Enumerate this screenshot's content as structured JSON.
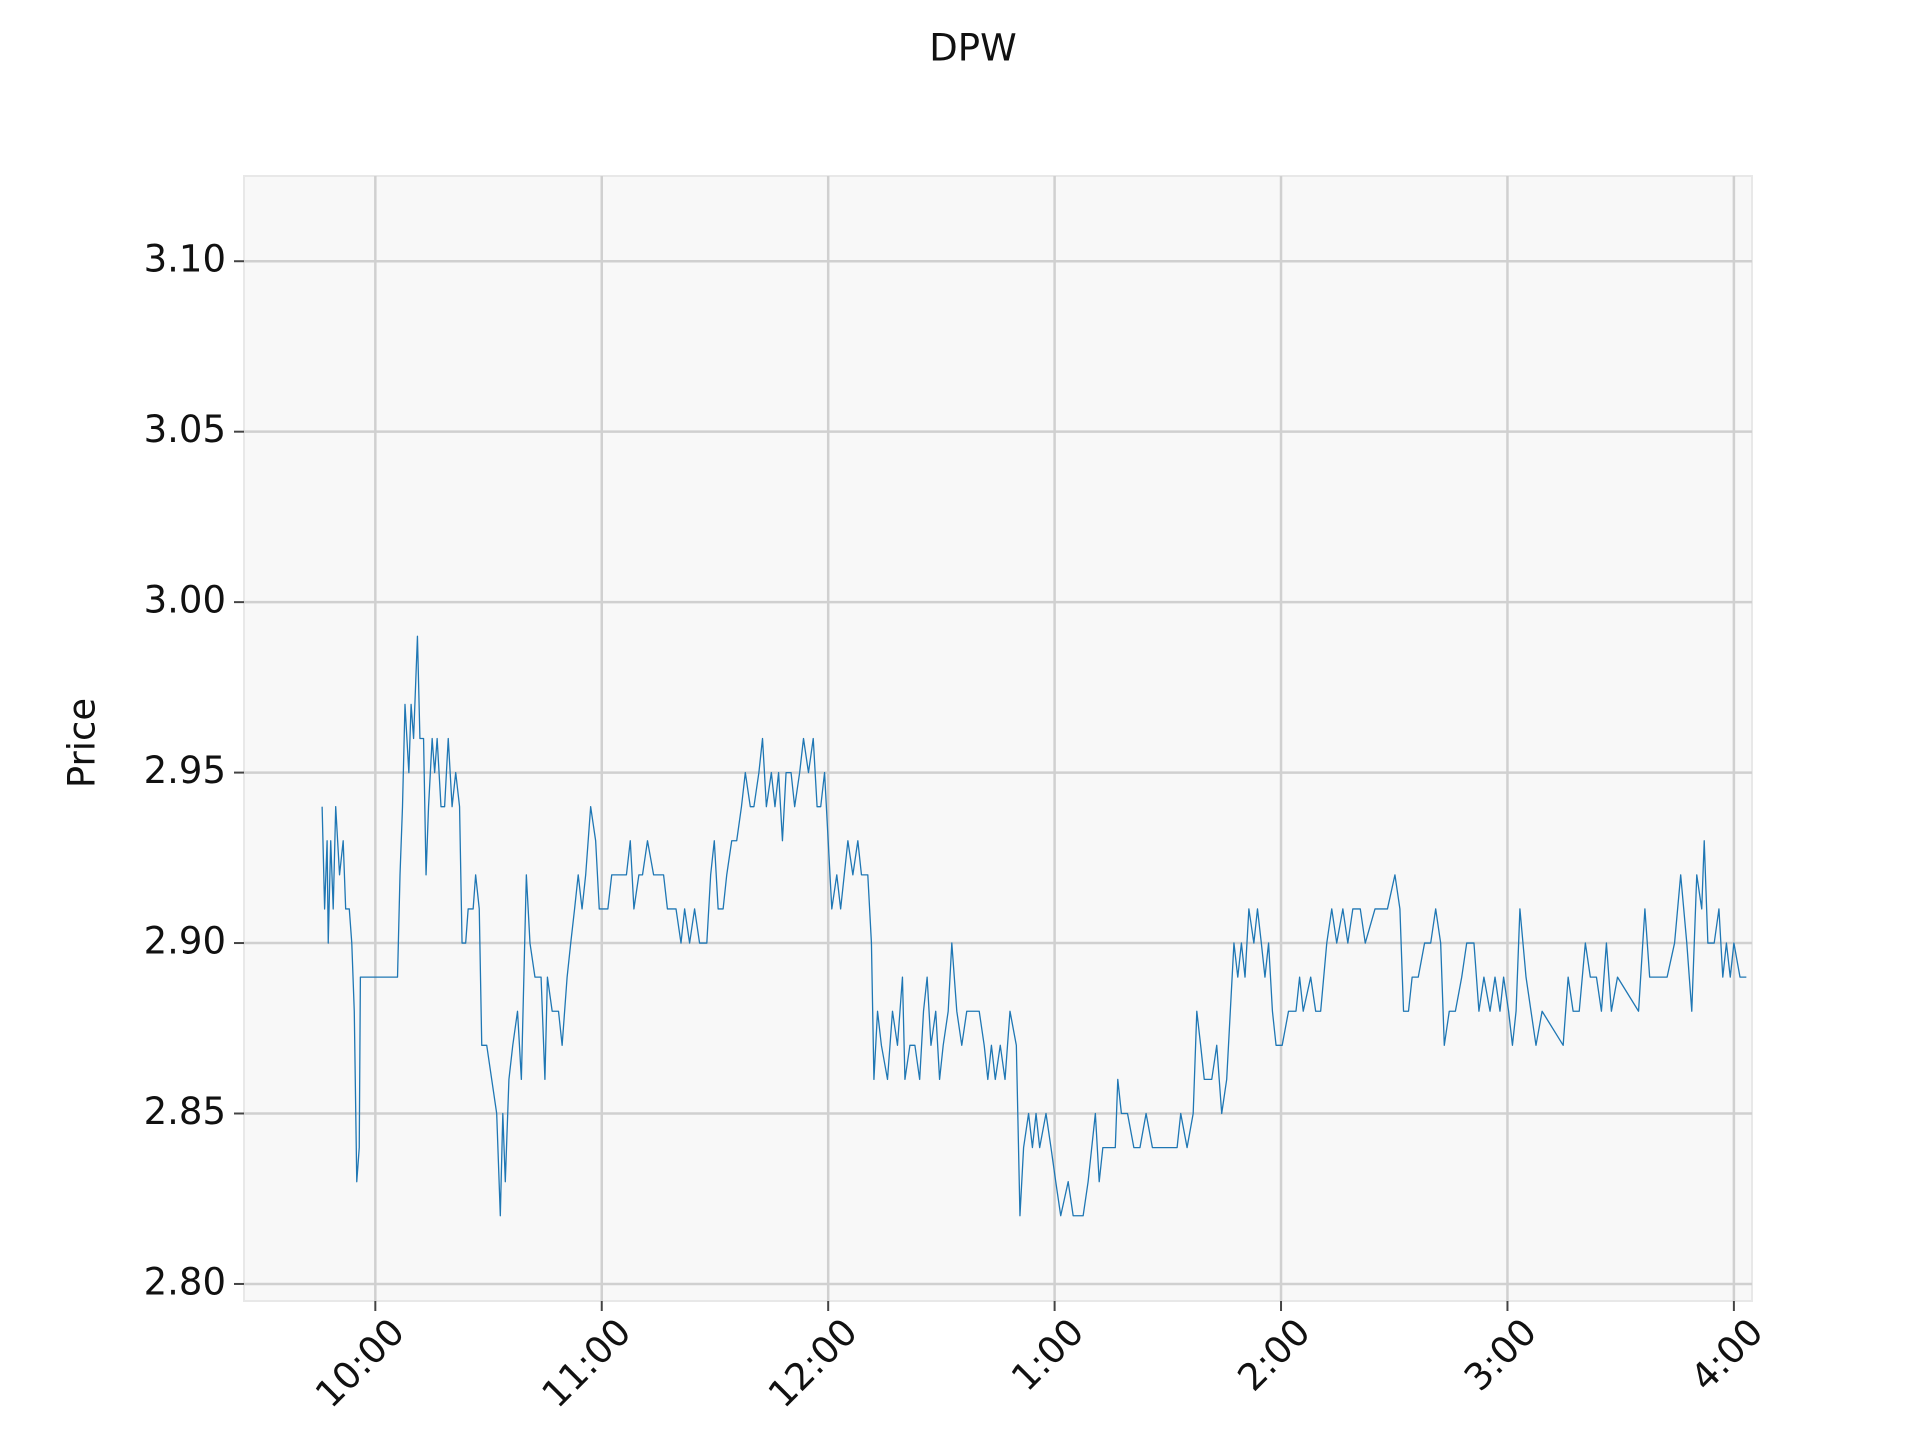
{
  "chart_data": {
    "type": "line",
    "title": "DPW",
    "y_label": "Price",
    "color": "#1f77b4",
    "grid": true,
    "xlim": [
      9.42,
      16.08
    ],
    "ylim": [
      2.795,
      3.125
    ],
    "xticks": [
      {
        "value": 10,
        "label": "10:00"
      },
      {
        "value": 11,
        "label": "11:00"
      },
      {
        "value": 12,
        "label": "12:00"
      },
      {
        "value": 13,
        "label": "1:00"
      },
      {
        "value": 14,
        "label": "2:00"
      },
      {
        "value": 15,
        "label": "3:00"
      },
      {
        "value": 16,
        "label": "4:00"
      }
    ],
    "yticks": [
      {
        "value": 2.8,
        "label": "2.80"
      },
      2.85,
      {
        "value": 2.9,
        "label": "2.90"
      },
      2.95,
      {
        "value": 3.0,
        "label": "3.00"
      },
      3.05,
      {
        "value": 3.1,
        "label": "3.10"
      }
    ],
    "x": [
      9.765,
      9.776,
      9.787,
      9.792,
      9.803,
      9.814,
      9.825,
      9.842,
      9.858,
      9.869,
      9.885,
      9.896,
      9.907,
      9.918,
      9.929,
      9.934,
      10.098,
      10.109,
      10.12,
      10.131,
      10.148,
      10.158,
      10.169,
      10.186,
      10.197,
      10.213,
      10.224,
      10.235,
      10.251,
      10.262,
      10.273,
      10.29,
      10.306,
      10.322,
      10.339,
      10.355,
      10.372,
      10.383,
      10.399,
      10.41,
      10.432,
      10.443,
      10.459,
      10.47,
      10.492,
      10.514,
      10.536,
      10.552,
      10.563,
      10.574,
      10.59,
      10.607,
      10.628,
      10.645,
      10.667,
      10.683,
      10.705,
      10.732,
      10.749,
      10.76,
      10.781,
      10.809,
      10.825,
      10.847,
      10.863,
      10.88,
      10.896,
      10.913,
      10.929,
      10.951,
      10.973,
      10.989,
      11.027,
      11.044,
      11.082,
      11.109,
      11.126,
      11.142,
      11.164,
      11.18,
      11.202,
      11.229,
      11.273,
      11.29,
      11.328,
      11.35,
      11.366,
      11.388,
      11.41,
      11.432,
      11.464,
      11.481,
      11.497,
      11.514,
      11.536,
      11.552,
      11.574,
      11.596,
      11.617,
      11.634,
      11.656,
      11.672,
      11.694,
      11.71,
      11.727,
      11.749,
      11.765,
      11.781,
      11.798,
      11.814,
      11.836,
      11.852,
      11.874,
      11.891,
      11.913,
      11.934,
      11.951,
      11.967,
      11.984,
      12.0,
      12.016,
      12.038,
      12.055,
      12.071,
      12.087,
      12.109,
      12.131,
      12.147,
      12.175,
      12.191,
      12.202,
      12.218,
      12.235,
      12.262,
      12.284,
      12.306,
      12.328,
      12.339,
      12.361,
      12.383,
      12.404,
      12.421,
      12.437,
      12.454,
      12.475,
      12.492,
      12.508,
      12.53,
      12.546,
      12.568,
      12.59,
      12.612,
      12.667,
      12.689,
      12.705,
      12.721,
      12.738,
      12.76,
      12.781,
      12.803,
      12.831,
      12.847,
      12.863,
      12.885,
      12.902,
      12.918,
      12.934,
      12.962,
      12.984,
      13.005,
      13.027,
      13.06,
      13.082,
      13.126,
      13.148,
      13.164,
      13.18,
      13.197,
      13.213,
      13.268,
      13.279,
      13.295,
      13.322,
      13.35,
      13.377,
      13.404,
      13.432,
      13.541,
      13.557,
      13.585,
      13.612,
      13.628,
      13.645,
      13.661,
      13.694,
      13.716,
      13.738,
      13.76,
      13.776,
      13.792,
      13.809,
      13.825,
      13.841,
      13.858,
      13.88,
      13.896,
      13.913,
      13.929,
      13.945,
      13.962,
      13.978,
      14.005,
      14.033,
      14.066,
      14.082,
      14.098,
      14.131,
      14.153,
      14.175,
      14.202,
      14.224,
      14.246,
      14.273,
      14.295,
      14.317,
      14.35,
      14.372,
      14.415,
      14.47,
      14.503,
      14.525,
      14.541,
      14.563,
      14.579,
      14.606,
      14.634,
      14.661,
      14.683,
      14.705,
      14.721,
      14.743,
      14.77,
      14.798,
      14.82,
      14.852,
      14.874,
      14.896,
      14.923,
      14.945,
      14.967,
      14.983,
      15.005,
      15.022,
      15.038,
      15.055,
      15.082,
      15.104,
      15.126,
      15.153,
      15.246,
      15.268,
      15.29,
      15.317,
      15.344,
      15.366,
      15.393,
      15.415,
      15.437,
      15.459,
      15.486,
      15.579,
      15.607,
      15.628,
      15.661,
      15.705,
      15.738,
      15.765,
      15.792,
      15.814,
      15.836,
      15.858,
      15.869,
      15.885,
      15.913,
      15.934,
      15.951,
      15.967,
      15.984,
      16.0,
      16.027,
      16.055
    ],
    "values": [
      2.94,
      2.91,
      2.93,
      2.9,
      2.93,
      2.91,
      2.94,
      2.92,
      2.93,
      2.91,
      2.91,
      2.9,
      2.88,
      2.83,
      2.84,
      2.89,
      2.89,
      2.92,
      2.94,
      2.97,
      2.95,
      2.97,
      2.96,
      2.99,
      2.96,
      2.96,
      2.92,
      2.94,
      2.96,
      2.95,
      2.96,
      2.94,
      2.94,
      2.96,
      2.94,
      2.95,
      2.94,
      2.9,
      2.9,
      2.91,
      2.91,
      2.92,
      2.91,
      2.87,
      2.87,
      2.86,
      2.85,
      2.82,
      2.85,
      2.83,
      2.86,
      2.87,
      2.88,
      2.86,
      2.92,
      2.9,
      2.89,
      2.89,
      2.86,
      2.89,
      2.88,
      2.88,
      2.87,
      2.89,
      2.9,
      2.91,
      2.92,
      2.91,
      2.92,
      2.94,
      2.93,
      2.91,
      2.91,
      2.92,
      2.92,
      2.92,
      2.93,
      2.91,
      2.92,
      2.92,
      2.93,
      2.92,
      2.92,
      2.91,
      2.91,
      2.9,
      2.91,
      2.9,
      2.91,
      2.9,
      2.9,
      2.92,
      2.93,
      2.91,
      2.91,
      2.92,
      2.93,
      2.93,
      2.94,
      2.95,
      2.94,
      2.94,
      2.95,
      2.96,
      2.94,
      2.95,
      2.94,
      2.95,
      2.93,
      2.95,
      2.95,
      2.94,
      2.95,
      2.96,
      2.95,
      2.96,
      2.94,
      2.94,
      2.95,
      2.93,
      2.91,
      2.92,
      2.91,
      2.92,
      2.93,
      2.92,
      2.93,
      2.92,
      2.92,
      2.9,
      2.86,
      2.88,
      2.87,
      2.86,
      2.88,
      2.87,
      2.89,
      2.86,
      2.87,
      2.87,
      2.86,
      2.88,
      2.89,
      2.87,
      2.88,
      2.86,
      2.87,
      2.88,
      2.9,
      2.88,
      2.87,
      2.88,
      2.88,
      2.87,
      2.86,
      2.87,
      2.86,
      2.87,
      2.86,
      2.88,
      2.87,
      2.82,
      2.84,
      2.85,
      2.84,
      2.85,
      2.84,
      2.85,
      2.84,
      2.83,
      2.82,
      2.83,
      2.82,
      2.82,
      2.83,
      2.84,
      2.85,
      2.83,
      2.84,
      2.84,
      2.86,
      2.85,
      2.85,
      2.84,
      2.84,
      2.85,
      2.84,
      2.84,
      2.85,
      2.84,
      2.85,
      2.88,
      2.87,
      2.86,
      2.86,
      2.87,
      2.85,
      2.86,
      2.88,
      2.9,
      2.89,
      2.9,
      2.89,
      2.91,
      2.9,
      2.91,
      2.9,
      2.89,
      2.9,
      2.88,
      2.87,
      2.87,
      2.88,
      2.88,
      2.89,
      2.88,
      2.89,
      2.88,
      2.88,
      2.9,
      2.91,
      2.9,
      2.91,
      2.9,
      2.91,
      2.91,
      2.9,
      2.91,
      2.91,
      2.92,
      2.91,
      2.88,
      2.88,
      2.89,
      2.89,
      2.9,
      2.9,
      2.91,
      2.9,
      2.87,
      2.88,
      2.88,
      2.89,
      2.9,
      2.9,
      2.88,
      2.89,
      2.88,
      2.89,
      2.88,
      2.89,
      2.88,
      2.87,
      2.88,
      2.91,
      2.89,
      2.88,
      2.87,
      2.88,
      2.87,
      2.89,
      2.88,
      2.88,
      2.9,
      2.89,
      2.89,
      2.88,
      2.9,
      2.88,
      2.89,
      2.88,
      2.91,
      2.89,
      2.89,
      2.89,
      2.9,
      2.92,
      2.9,
      2.88,
      2.92,
      2.91,
      2.93,
      2.9,
      2.9,
      2.91,
      2.89,
      2.9,
      2.89,
      2.9,
      2.89,
      2.89
    ]
  }
}
